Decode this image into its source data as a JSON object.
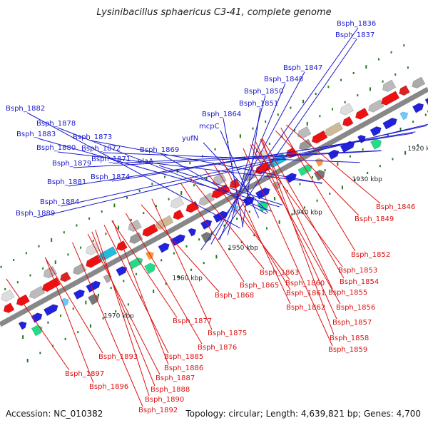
{
  "header": {
    "title": "Lysinibacillus sphaericus C3-41, complete genome"
  },
  "footer": {
    "accession": "Accession: NC_010382",
    "summary": "Topology: circular; Length: 4,639,821 bp; Genes: 4,700"
  },
  "colors": {
    "backbone": "#888888",
    "forward_label": "#1a1acc",
    "reverse_label": "#dd1111",
    "tick": "#1e7a1e"
  },
  "kbp_markers": [
    {
      "label": "1920 kbp"
    },
    {
      "label": "1930 kbp"
    },
    {
      "label": "1940 kbp"
    },
    {
      "label": "1950 kbp"
    },
    {
      "label": "1960 kbp"
    },
    {
      "label": "1970 kbp"
    }
  ],
  "forward_genes": [
    "Bsph_1836",
    "Bsph_1837",
    "Bsph_1847",
    "Bsph_1848",
    "Bsph_1850",
    "Bsph_1851",
    "Bsph_1864",
    "mcpC",
    "yufN",
    "Bsph_1869",
    "ulaA",
    "Bsph_1882",
    "Bsph_1878",
    "Bsph_1883",
    "Bsph_1873",
    "Bsph_1880",
    "Bsph_1872",
    "Bsph_1871",
    "Bsph_1879",
    "Bsph_1874",
    "Bsph_1881",
    "Bsph_1884",
    "Bsph_1889"
  ],
  "reverse_genes": [
    "Bsph_1846",
    "Bsph_1849",
    "Bsph_1852",
    "Bsph_1853",
    "Bsph_1854",
    "Bsph_1855",
    "Bsph_1856",
    "Bsph_1857",
    "Bsph_1858",
    "Bsph_1859",
    "Bsph_1863",
    "Bsph_1865",
    "Bsph_1860",
    "Bsph_1861",
    "Bsph_1862",
    "Bsph_1868",
    "Bsph_1877",
    "Bsph_1875",
    "Bsph_1876",
    "Bsph_1885",
    "Bsph_1886",
    "Bsph_1887",
    "Bsph_1888",
    "Bsph_1890",
    "Bsph_1892",
    "Bsph_1893",
    "Bsph_1896",
    "Bsph_1897"
  ]
}
